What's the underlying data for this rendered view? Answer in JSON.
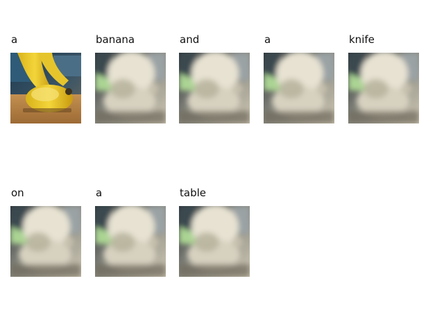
{
  "figure": {
    "panels": [
      {
        "word": "a",
        "image": "banana-photo"
      },
      {
        "word": "banana",
        "image": "attention-map"
      },
      {
        "word": "and",
        "image": "attention-map"
      },
      {
        "word": "a",
        "image": "attention-map"
      },
      {
        "word": "knife",
        "image": "attention-map"
      },
      {
        "word": "on",
        "image": "attention-map"
      },
      {
        "word": "a",
        "image": "attention-map"
      },
      {
        "word": "table",
        "image": "attention-map"
      }
    ]
  }
}
